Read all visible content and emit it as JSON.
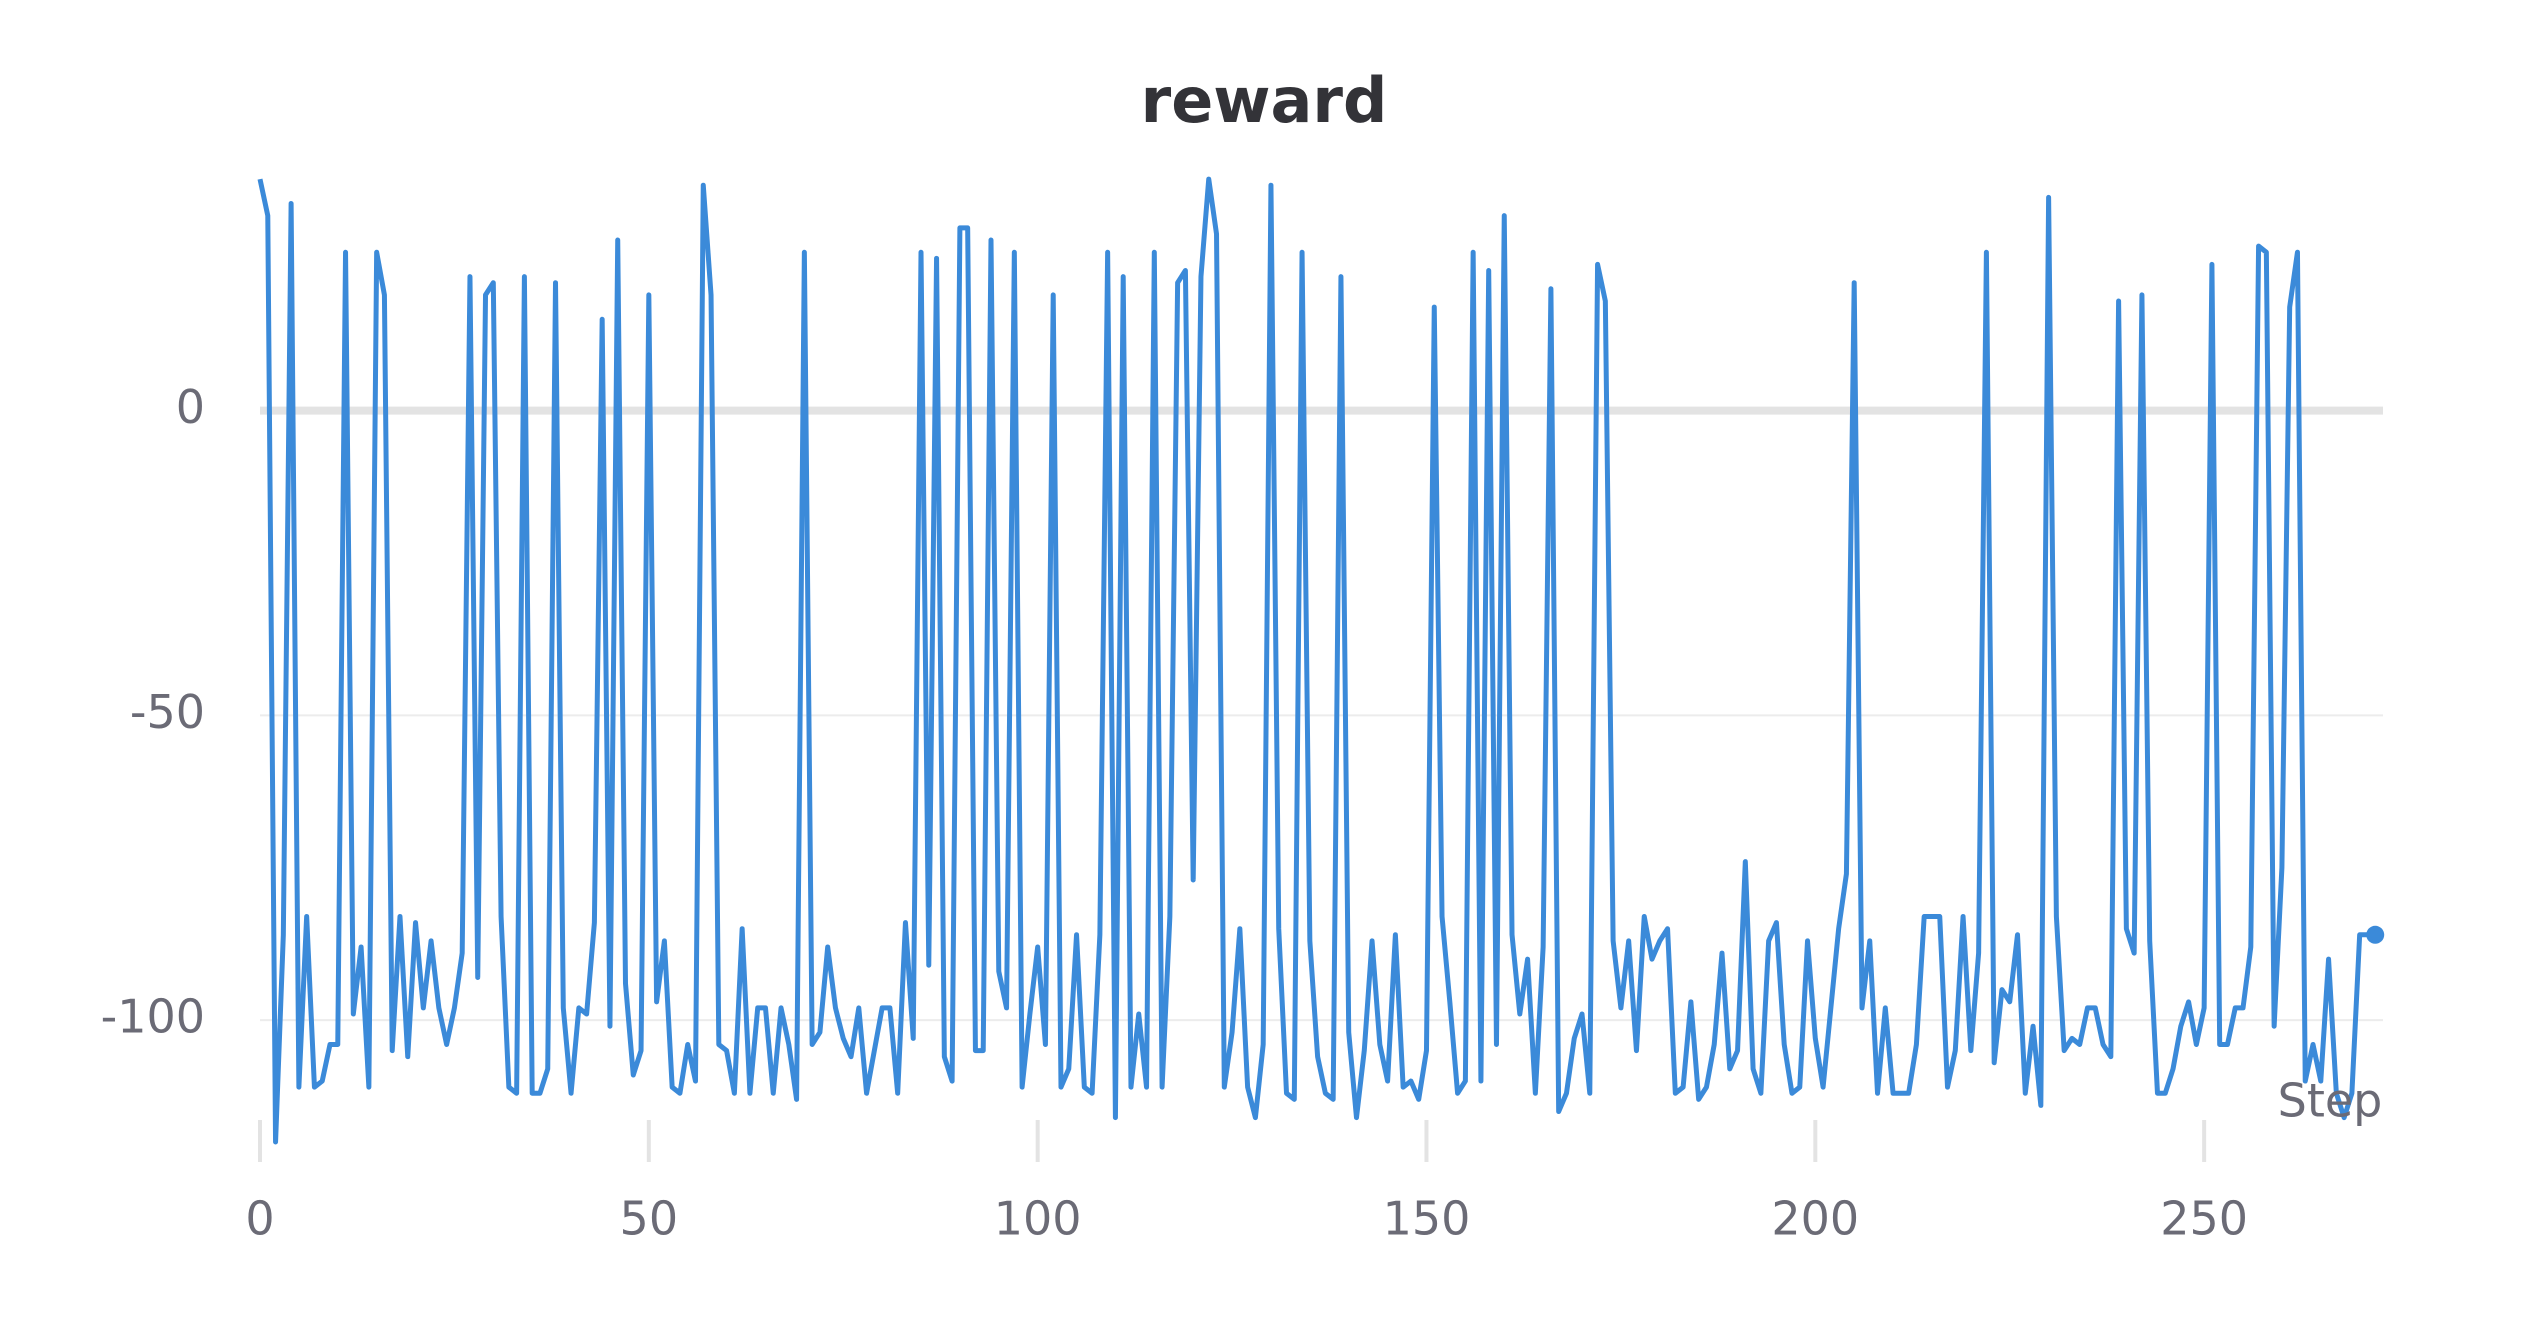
{
  "chart_data": {
    "type": "line",
    "title": "reward",
    "x_label": "Step",
    "color": "#3b8ad9",
    "x": [
      0,
      1,
      2,
      3,
      4,
      5,
      6,
      7,
      8,
      9,
      10,
      11,
      12,
      13,
      14,
      15,
      16,
      17,
      18,
      19,
      20,
      21,
      22,
      23,
      24,
      25,
      26,
      27,
      28,
      29,
      30,
      31,
      32,
      33,
      34,
      35,
      36,
      37,
      38,
      39,
      40,
      41,
      42,
      43,
      44,
      45,
      46,
      47,
      48,
      49,
      50,
      51,
      52,
      53,
      54,
      55,
      56,
      57,
      58,
      59,
      60,
      61,
      62,
      63,
      64,
      65,
      66,
      67,
      68,
      69,
      70,
      71,
      72,
      73,
      74,
      75,
      76,
      77,
      78,
      79,
      80,
      81,
      82,
      83,
      84,
      85,
      86,
      87,
      88,
      89,
      90,
      91,
      92,
      93,
      94,
      95,
      96,
      97,
      98,
      99,
      100,
      101,
      102,
      103,
      104,
      105,
      106,
      107,
      108,
      109,
      110,
      111,
      112,
      113,
      114,
      115,
      116,
      117,
      118,
      119,
      120,
      121,
      122,
      123,
      124,
      125,
      126,
      127,
      128,
      129,
      130,
      131,
      132,
      133,
      134,
      135,
      136,
      137,
      138,
      139,
      140,
      141,
      142,
      143,
      144,
      145,
      146,
      147,
      148,
      149,
      150,
      151,
      152,
      153,
      154,
      155,
      156,
      157,
      158,
      159,
      160,
      161,
      162,
      163,
      164,
      165,
      166,
      167,
      168,
      169,
      170,
      171,
      172,
      173,
      174,
      175,
      176,
      177,
      178,
      179,
      180,
      181,
      182,
      183,
      184,
      185,
      186,
      187,
      188,
      189,
      190,
      191,
      192,
      193,
      194,
      195,
      196,
      197,
      198,
      199,
      200,
      201,
      202,
      203,
      204,
      205,
      206,
      207,
      208,
      209,
      210,
      211,
      212,
      213,
      214,
      215,
      216,
      217,
      218,
      219,
      220,
      221,
      222,
      223,
      224,
      225,
      226,
      227,
      228,
      229,
      230,
      231,
      232,
      233,
      234,
      235,
      236,
      237,
      238,
      239,
      240,
      241,
      242,
      243,
      244,
      245,
      246,
      247,
      248,
      249,
      250,
      251,
      252,
      253,
      254,
      255,
      256,
      257,
      258,
      259,
      260,
      261,
      262,
      263,
      264,
      265,
      266,
      267,
      268,
      269,
      270,
      271,
      272
    ],
    "values": [
      38,
      32,
      -120,
      -86,
      34,
      -111,
      -83,
      -111,
      -110,
      -104,
      -104,
      26,
      -99,
      -88,
      -111,
      26,
      19,
      -105,
      -83,
      -106,
      -84,
      -98,
      -87,
      -98,
      -104,
      -98,
      -89,
      22,
      -93,
      19,
      21,
      -83,
      -111,
      -112,
      22,
      -112,
      -112,
      -108,
      21,
      -98,
      -112,
      -98,
      -99,
      -84,
      15,
      -101,
      28,
      -94,
      -109,
      -105,
      19,
      -97,
      -87,
      -111,
      -112,
      -104,
      -110,
      37,
      19,
      -104,
      -105,
      -112,
      -85,
      -112,
      -98,
      -98,
      -112,
      -98,
      -104,
      -113,
      26,
      -104,
      -102,
      -88,
      -98,
      -103,
      -106,
      -98,
      -112,
      -105,
      -98,
      -98,
      -112,
      -84,
      -103,
      26,
      -91,
      25,
      -106,
      -110,
      30,
      30,
      -105,
      -105,
      28,
      -92,
      -98,
      26,
      -111,
      -99,
      -88,
      -104,
      19,
      -111,
      -108,
      -86,
      -111,
      -112,
      -86,
      26,
      -116,
      22,
      -111,
      -99,
      -111,
      26,
      -111,
      -83,
      21,
      23,
      -77,
      22,
      38,
      29,
      -111,
      -102,
      -85,
      -111,
      -116,
      -104,
      37,
      -85,
      -112,
      -113,
      26,
      -87,
      -106,
      -112,
      -113,
      22,
      -102,
      -116,
      -105,
      -87,
      -104,
      -110,
      -86,
      -111,
      -110,
      -113,
      -105,
      17,
      -83,
      -97,
      -112,
      -110,
      26,
      -110,
      23,
      -104,
      32,
      -86,
      -99,
      -90,
      -112,
      -88,
      20,
      -115,
      -112,
      -103,
      -99,
      -112,
      24,
      18,
      -87,
      -98,
      -87,
      -105,
      -83,
      -90,
      -87,
      -85,
      -112,
      -111,
      -97,
      -113,
      -111,
      -104,
      -89,
      -108,
      -105,
      -74,
      -108,
      -112,
      -87,
      -84,
      -104,
      -112,
      -111,
      -87,
      -103,
      -111,
      -98,
      -85,
      -76,
      21,
      -98,
      -87,
      -112,
      -98,
      -112,
      -112,
      -112,
      -104,
      -83,
      -83,
      -83,
      -111,
      -105,
      -83,
      -105,
      -89,
      26,
      -107,
      -95,
      -97,
      -86,
      -112,
      -101,
      -114,
      35,
      -83,
      -105,
      -103,
      -104,
      -98,
      -98,
      -104,
      -106,
      18,
      -85,
      -89,
      19,
      -87,
      -112,
      -112,
      -108,
      -101,
      -97,
      -104,
      -98,
      24,
      -104,
      -104,
      -98,
      -98,
      -88,
      27,
      26,
      -101,
      -75,
      17,
      26,
      -110,
      -104,
      -110,
      -90,
      -112,
      -116,
      -112,
      -86,
      -86,
      -86
    ],
    "xlim": [
      0,
      273
    ],
    "ylim": [
      -120,
      39
    ],
    "xticks": [
      0,
      50,
      100,
      150,
      200,
      250
    ],
    "yticks": [
      -100,
      -50,
      0
    ]
  }
}
